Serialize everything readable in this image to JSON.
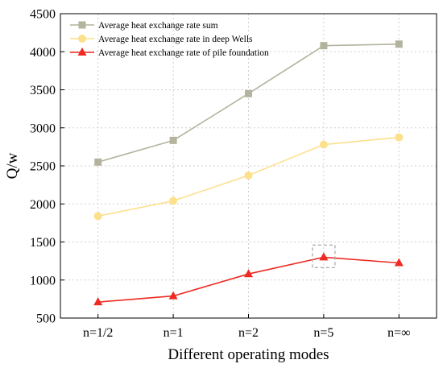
{
  "chart_data": {
    "type": "line",
    "categories": [
      "n=1/2",
      "n=1",
      "n=2",
      "n=5",
      "n=∞"
    ],
    "series": [
      {
        "name": "Average heat exchange rate sum",
        "values": [
          2550,
          2835,
          3450,
          4080,
          4100
        ],
        "color": "#b4b49e",
        "marker": "square"
      },
      {
        "name": "Average heat exchange rate in deep Wells",
        "values": [
          1840,
          2040,
          2375,
          2780,
          2875
        ],
        "color": "#fde08c",
        "marker": "circle"
      },
      {
        "name": "Average heat exchange rate of pile foundation",
        "values": [
          710,
          790,
          1080,
          1300,
          1225
        ],
        "color": "#ee2a22",
        "marker": "triangle"
      }
    ],
    "ylim": [
      500,
      4500
    ],
    "yticks": [
      500,
      1000,
      1500,
      2000,
      2500,
      3000,
      3500,
      4000,
      4500
    ],
    "xlabel": "Different operating modes",
    "ylabel": "Q/w",
    "grid": true,
    "legend_position": "top-left",
    "highlight": {
      "category": "n=5",
      "series": 2
    }
  }
}
